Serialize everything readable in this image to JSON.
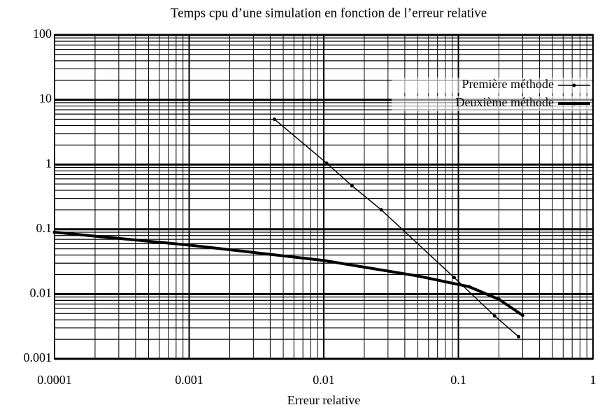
{
  "chart_data": {
    "type": "line",
    "title": "Temps cpu d’une simulation en fonction de l’erreur relative",
    "xlabel": "Erreur relative",
    "xscale": "log",
    "yscale": "log",
    "grid": true,
    "legend": "upper right",
    "xlim": [
      0.0001,
      1
    ],
    "ylim": [
      0.001,
      100
    ],
    "xticks": [
      0.0001,
      0.001,
      0.01,
      0.1,
      1
    ],
    "yticks": [
      0.001,
      0.01,
      0.1,
      1,
      10,
      100
    ],
    "series": [
      {
        "name": "Première méthode",
        "color": "#000000",
        "width": 1.5,
        "x": [
          0.0043,
          0.0105,
          0.0162,
          0.0267,
          0.093,
          0.186,
          0.28
        ],
        "values": [
          5.0,
          1.05,
          0.47,
          0.2,
          0.018,
          0.0046,
          0.0022
        ]
      },
      {
        "name": "Deuxième méthode",
        "color": "#000000",
        "width": 4,
        "x": [
          0.0001,
          0.001,
          0.01,
          0.05,
          0.12,
          0.2,
          0.3
        ],
        "values": [
          0.09,
          0.057,
          0.033,
          0.019,
          0.013,
          0.0083,
          0.0047
        ]
      }
    ]
  }
}
